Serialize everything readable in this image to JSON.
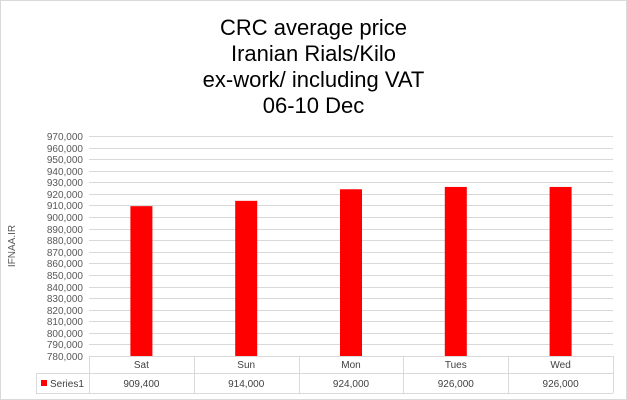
{
  "chart_data": {
    "type": "bar",
    "title_lines": [
      "CRC average price",
      "Iranian Rials/Kilo",
      "ex-work/ including VAT",
      "06-10 Dec"
    ],
    "ylabel": "IFNAA.IR",
    "xlabel": "",
    "categories": [
      "Sat",
      "Sun",
      "Mon",
      "Tues",
      "Wed"
    ],
    "series": [
      {
        "name": "Series1",
        "values": [
          909400,
          914000,
          924000,
          926000,
          926000
        ],
        "value_labels": [
          "909,400",
          "914,000",
          "924,000",
          "926,000",
          "926,000"
        ],
        "color": "#ff0000"
      }
    ],
    "ylim": [
      780000,
      970000
    ],
    "ytick_step": 10000,
    "grid": true,
    "data_table": true
  }
}
